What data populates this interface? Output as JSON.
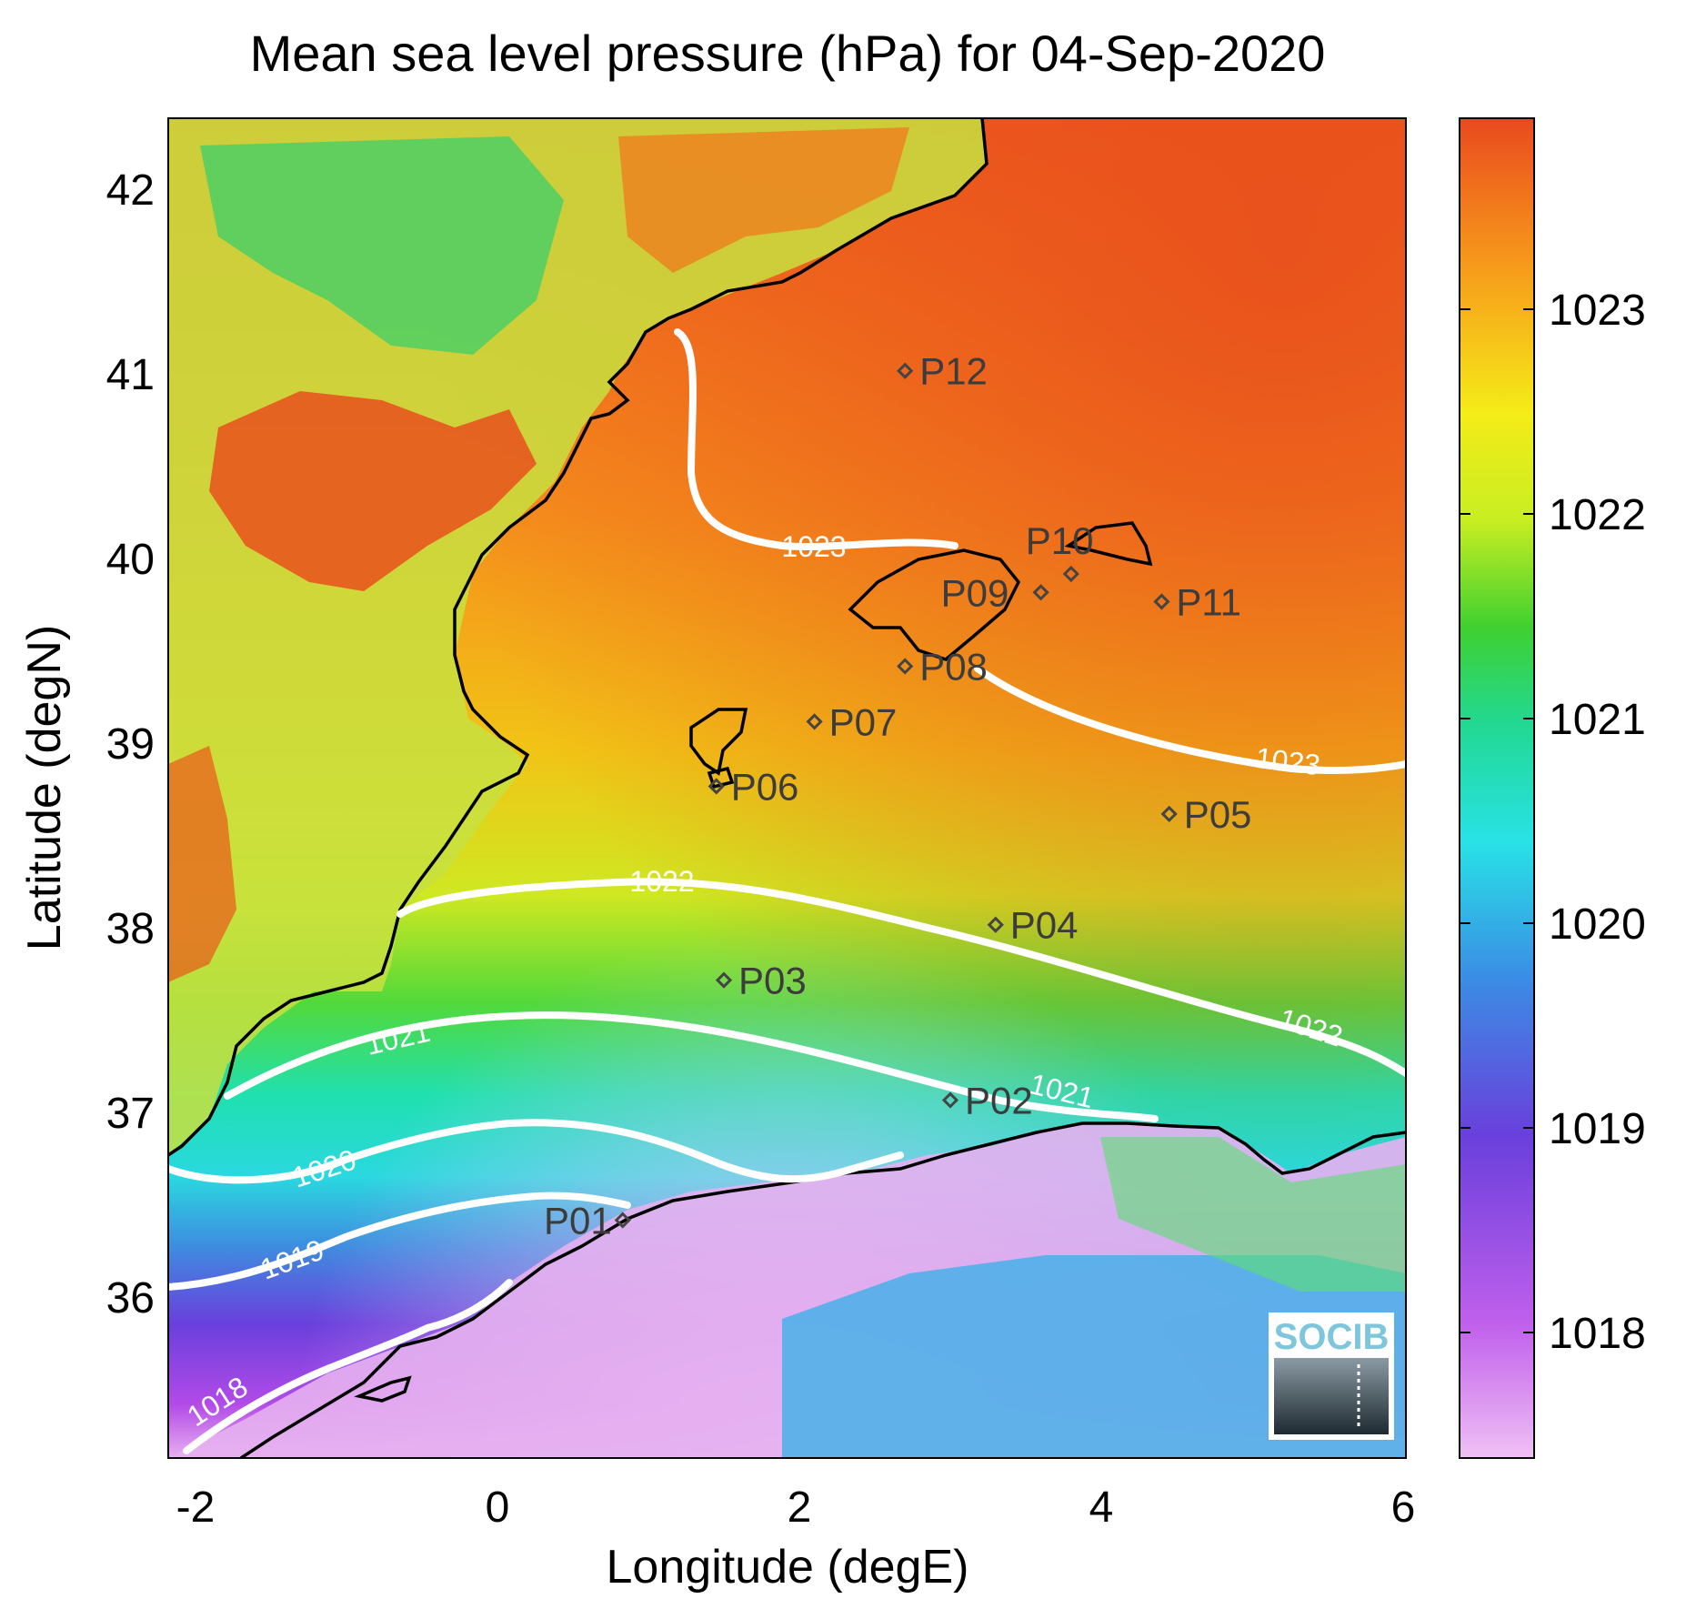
{
  "map": {
    "title": "Mean sea level pressure (hPa) for 04-Sep-2020",
    "xlabel": "Longitude (degE)",
    "ylabel": "Latitude (degN)",
    "xlim": [
      -2.2,
      6.0
    ],
    "ylim": [
      35.2,
      42.2
    ],
    "xticks": [
      "-2",
      "0",
      "2",
      "4",
      "6"
    ],
    "yticks": [
      "36",
      "37",
      "38",
      "39",
      "40",
      "41",
      "42"
    ],
    "colorbar": {
      "range": [
        1017.4,
        1023.9
      ],
      "ticks": [
        "1018",
        "1019",
        "1020",
        "1021",
        "1022",
        "1023"
      ],
      "colormap": "jet-like (pink to red)"
    },
    "contours": [
      {
        "label": "1018"
      },
      {
        "label": "1019"
      },
      {
        "label": "1020"
      },
      {
        "label": "1021"
      },
      {
        "label": "1022"
      },
      {
        "label": "1023"
      }
    ],
    "points": [
      {
        "label": "P01",
        "lon": 0.83,
        "lat": 36.5
      },
      {
        "label": "P02",
        "lon": 3.0,
        "lat": 37.15
      },
      {
        "label": "P03",
        "lon": 1.5,
        "lat": 37.8
      },
      {
        "label": "P04",
        "lon": 3.3,
        "lat": 38.1
      },
      {
        "label": "P05",
        "lon": 4.45,
        "lat": 38.7
      },
      {
        "label": "P06",
        "lon": 1.45,
        "lat": 38.85
      },
      {
        "label": "P07",
        "lon": 2.1,
        "lat": 39.2
      },
      {
        "label": "P08",
        "lon": 2.7,
        "lat": 39.5
      },
      {
        "label": "P09",
        "lon": 3.6,
        "lat": 39.9
      },
      {
        "label": "P10",
        "lon": 3.8,
        "lat": 40.0
      },
      {
        "label": "P11",
        "lon": 4.4,
        "lat": 39.85
      },
      {
        "label": "P12",
        "lon": 2.7,
        "lat": 41.1
      }
    ],
    "logo": "SOCIB",
    "colors": {
      "coastline": "#000000",
      "contour": "#ffffff",
      "point_marker": "#444444"
    }
  }
}
